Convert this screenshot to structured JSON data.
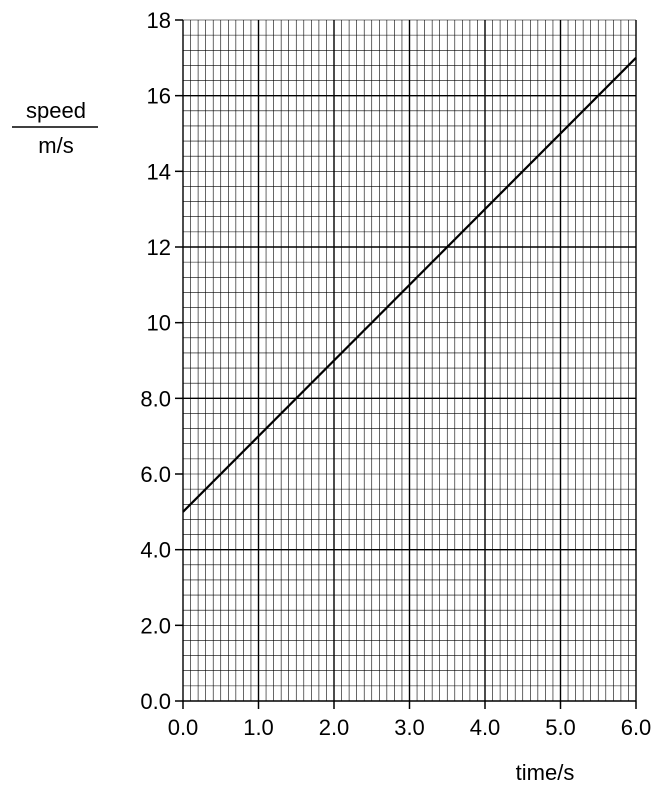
{
  "chart_data": {
    "type": "line",
    "xlabel": "time/s",
    "ylabel_numerator": "speed",
    "ylabel_denominator": "m/s",
    "xlim": [
      0.0,
      6.0
    ],
    "ylim": [
      0.0,
      18.0
    ],
    "x_ticks": [
      "0.0",
      "1.0",
      "2.0",
      "3.0",
      "4.0",
      "5.0",
      "6.0"
    ],
    "y_ticks": [
      "0.0",
      "2.0",
      "4.0",
      "6.0",
      "8.0",
      "10",
      "12",
      "14",
      "16",
      "18"
    ],
    "grid": true,
    "series": [
      {
        "x": [
          0.0,
          6.0
        ],
        "y": [
          5.0,
          17.0
        ]
      }
    ]
  }
}
